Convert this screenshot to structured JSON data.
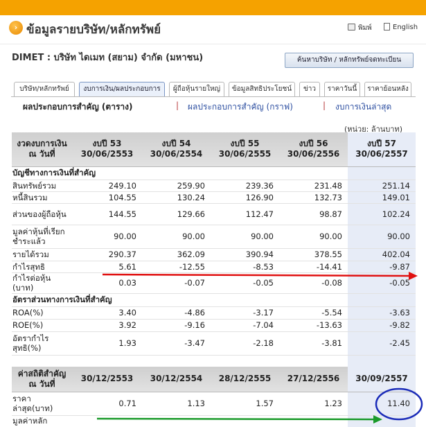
{
  "header": {
    "title": "ข้อมูลรายบริษัท/หลักทรัพย์",
    "print_label": "พิมพ์",
    "lang_label": "English",
    "circle_glyph": "›"
  },
  "company": {
    "name": "DIMET : บริษัท ไดเมท (สยาม) จำกัด (มหาชน)",
    "search_button": "ค้นหาบริษัท / หลักทรัพย์จดทะเบียน"
  },
  "tabs": [
    "บริษัท/หลักทรัพย์",
    "งบการเงิน/ผลประกอบการ",
    "ผู้ถือหุ้นรายใหญ่",
    "ข้อมูลสิทธิประโยชน์",
    "ข่าว",
    "ราคาวันนี้",
    "ราคาย้อนหลัง"
  ],
  "subnav": {
    "active": "ผลประกอบการสำคัญ (ตาราง)",
    "sep": "|",
    "link1": "ผลประกอบการสำคัญ (กราฟ)",
    "link2": "งบการเงินล่าสุด"
  },
  "unit": "(หน่วย: ล้านบาท)",
  "table": {
    "corner": "งวดงบการเงิน ณ วันที่",
    "periods": [
      {
        "label": "งบปี 53",
        "date": "30/06/2553"
      },
      {
        "label": "งบปี 54",
        "date": "30/06/2554"
      },
      {
        "label": "งบปี 55",
        "date": "30/06/2555"
      },
      {
        "label": "งบปี 56",
        "date": "30/06/2556"
      },
      {
        "label": "งบปี 57",
        "date": "30/06/2557"
      }
    ],
    "section1": "บัญชีทางการเงินที่สำคัญ",
    "rows1": [
      {
        "label": "สินทรัพย์รวม",
        "values": [
          "249.10",
          "259.90",
          "239.36",
          "231.48",
          "251.14"
        ]
      },
      {
        "label": "หนี้สินรวม",
        "values": [
          "104.55",
          "130.24",
          "126.90",
          "132.73",
          "149.01"
        ]
      },
      {
        "label": "ส่วนของผู้ถือหุ้น",
        "values": [
          "144.55",
          "129.66",
          "112.47",
          "98.87",
          "102.24"
        ]
      },
      {
        "label": "มูลค่าหุ้นที่เรียกชำระแล้ว",
        "values": [
          "90.00",
          "90.00",
          "90.00",
          "90.00",
          "90.00"
        ]
      },
      {
        "label": "รายได้รวม",
        "values": [
          "290.37",
          "362.09",
          "390.94",
          "378.55",
          "402.04"
        ]
      },
      {
        "label": "กำไรสุทธิ",
        "values": [
          "5.61",
          "-12.55",
          "-8.53",
          "-14.41",
          "-9.87"
        ]
      },
      {
        "label": "กำไรต่อหุ้น (บาท)",
        "values": [
          "0.03",
          "-0.07",
          "-0.05",
          "-0.08",
          "-0.05"
        ]
      }
    ],
    "section2": "อัตราส่วนทางการเงินที่สำคัญ",
    "rows2": [
      {
        "label": "ROA(%)",
        "values": [
          "3.40",
          "-4.86",
          "-3.17",
          "-5.54",
          "-3.63"
        ]
      },
      {
        "label": "ROE(%)",
        "values": [
          "3.92",
          "-9.16",
          "-7.04",
          "-13.63",
          "-9.82"
        ]
      },
      {
        "label": "อัตรากำไรสุทธิ(%)",
        "values": [
          "1.93",
          "-3.47",
          "-2.18",
          "-3.81",
          "-2.45"
        ]
      }
    ],
    "stats_corner": "ค่าสถิติสำคัญ ณ วันที่",
    "stats_dates": [
      "30/12/2553",
      "30/12/2554",
      "28/12/2555",
      "27/12/2556",
      "30/09/2557"
    ],
    "stats_rows": [
      {
        "label": "ราคาล่าสุด(บาท)",
        "values": [
          "0.71",
          "1.13",
          "1.57",
          "1.23",
          "11.40"
        ]
      },
      {
        "label": "มูลค่าหลัก",
        "values": [
          "",
          "",
          "",
          "",
          ""
        ]
      }
    ]
  },
  "annotations": {
    "red_arrow_color": "#e01010",
    "green_arrow_color": "#1a9a2a",
    "circle_color": "#1a2bb8"
  }
}
